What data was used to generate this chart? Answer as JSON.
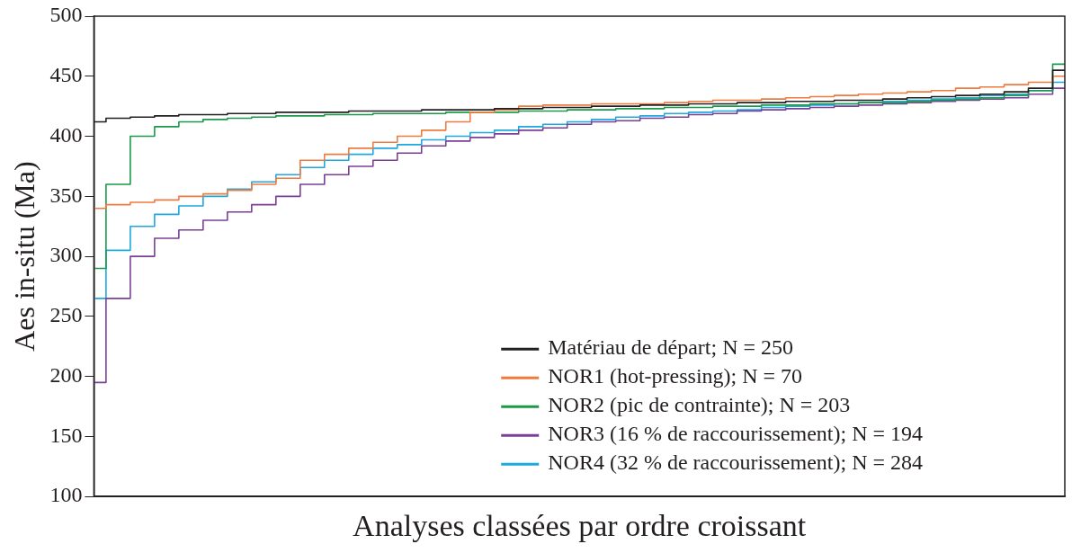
{
  "chart_data": {
    "type": "step",
    "xlabel": "Analyses classées par ordre croissant",
    "ylabel": "Aes in-situ (Ma)",
    "ylim": [
      100,
      500
    ],
    "yticks": [
      100,
      150,
      200,
      250,
      300,
      350,
      400,
      450,
      500
    ],
    "grid": false,
    "legend": "bottom right",
    "tick_labels": "y",
    "marker": "none",
    "line_style": "solid",
    "categories": [
      null,
      null,
      null,
      null,
      null,
      null,
      null,
      null,
      null,
      null,
      null,
      null,
      null,
      null,
      null,
      null,
      null,
      null,
      null,
      null,
      null,
      null,
      null,
      null,
      null,
      null,
      null,
      null,
      null,
      null,
      null,
      null,
      null,
      null,
      null,
      null,
      null,
      null,
      null,
      null,
      null
    ],
    "series": [
      {
        "name": "Matériau de départ; N = 250",
        "color": "#231f20",
        "values": [
          412,
          415,
          416,
          417,
          418,
          418,
          419,
          419,
          420,
          420,
          420,
          421,
          421,
          421,
          422,
          422,
          422,
          423,
          423,
          424,
          424,
          425,
          425,
          426,
          426,
          427,
          427,
          428,
          428,
          429,
          429,
          430,
          430,
          431,
          432,
          433,
          434,
          435,
          437,
          440,
          455
        ]
      },
      {
        "name": "NOR1 (hot-pressing); N = 70",
        "color": "#f07b3f",
        "values": [
          340,
          343,
          345,
          347,
          350,
          352,
          355,
          360,
          365,
          380,
          385,
          390,
          395,
          400,
          405,
          412,
          420,
          422,
          425,
          426,
          426,
          427,
          427,
          427,
          428,
          429,
          430,
          430,
          431,
          432,
          433,
          434,
          435,
          436,
          437,
          438,
          440,
          441,
          443,
          445,
          450
        ]
      },
      {
        "name": "NOR2 (pic de contrainte); N = 203",
        "color": "#1a9a48",
        "values": [
          290,
          360,
          400,
          408,
          412,
          414,
          415,
          416,
          417,
          417,
          418,
          418,
          419,
          419,
          419,
          420,
          420,
          420,
          421,
          421,
          422,
          422,
          423,
          423,
          424,
          424,
          425,
          425,
          426,
          426,
          427,
          427,
          428,
          428,
          429,
          430,
          431,
          432,
          434,
          438,
          460
        ]
      },
      {
        "name": "NOR3 (16 % de raccourissement); N = 194",
        "color": "#7b3f98",
        "values": [
          195,
          265,
          300,
          315,
          322,
          330,
          337,
          343,
          350,
          360,
          368,
          375,
          380,
          386,
          392,
          396,
          399,
          402,
          405,
          407,
          410,
          412,
          413,
          415,
          416,
          418,
          419,
          421,
          422,
          423,
          424,
          425,
          426,
          427,
          428,
          429,
          430,
          431,
          432,
          435,
          440
        ]
      },
      {
        "name": "NOR4 (32 % de raccourissement); N = 284",
        "color": "#1ea8e0",
        "values": [
          265,
          305,
          325,
          335,
          342,
          350,
          356,
          362,
          368,
          374,
          380,
          385,
          390,
          393,
          397,
          400,
          403,
          405,
          408,
          410,
          412,
          414,
          416,
          417,
          419,
          420,
          421,
          422,
          424,
          425,
          426,
          427,
          428,
          429,
          430,
          431,
          432,
          434,
          435,
          438,
          445
        ]
      }
    ]
  }
}
